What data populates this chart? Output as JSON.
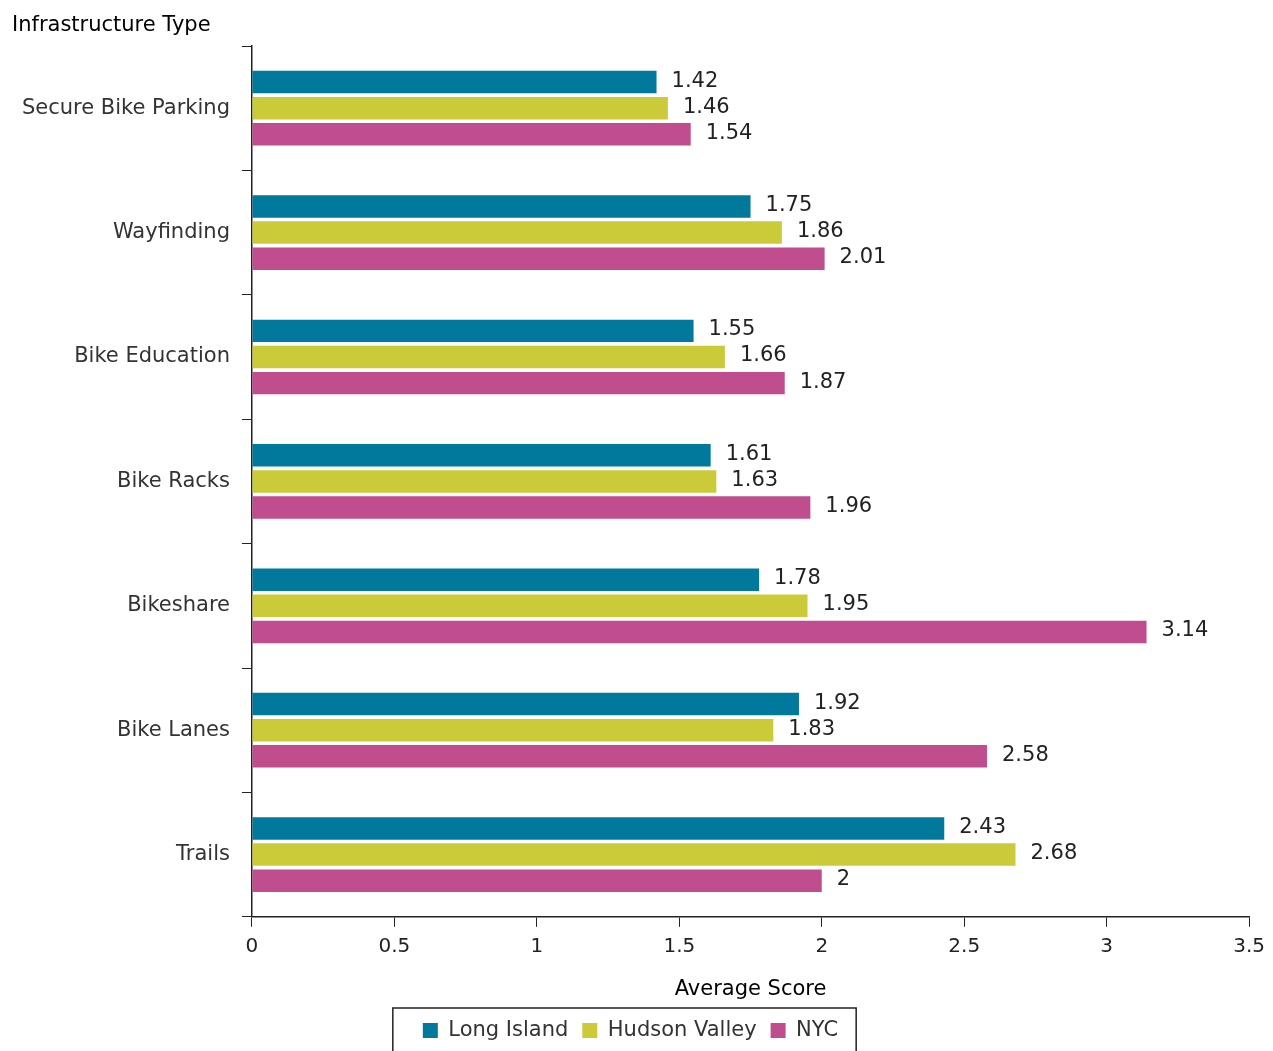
{
  "chart_data": {
    "type": "bar",
    "orientation": "horizontal",
    "ylabel": "Infrastructure Type",
    "xlabel": "Average Score",
    "categories": [
      "Secure Bike Parking",
      "Wayfinding",
      "Bike Education",
      "Bike Racks",
      "Bikeshare",
      "Bike Lanes",
      "Trails"
    ],
    "series": [
      {
        "name": "Long Island",
        "color": "#00799c",
        "values": [
          1.42,
          1.75,
          1.55,
          1.61,
          1.78,
          1.92,
          2.43
        ]
      },
      {
        "name": "Hudson Valley",
        "color": "#cbcb3a",
        "values": [
          1.46,
          1.86,
          1.66,
          1.63,
          1.95,
          1.83,
          2.68
        ]
      },
      {
        "name": "NYC",
        "color": "#c04d8e",
        "values": [
          1.54,
          2.01,
          1.87,
          1.96,
          3.14,
          2.58,
          2
        ]
      }
    ],
    "xlim": [
      0,
      3.5
    ],
    "xticks": [
      0,
      0.5,
      1,
      1.5,
      2,
      2.5,
      3,
      3.5
    ],
    "data_labels": true,
    "legend": "bottom",
    "grid": false
  }
}
